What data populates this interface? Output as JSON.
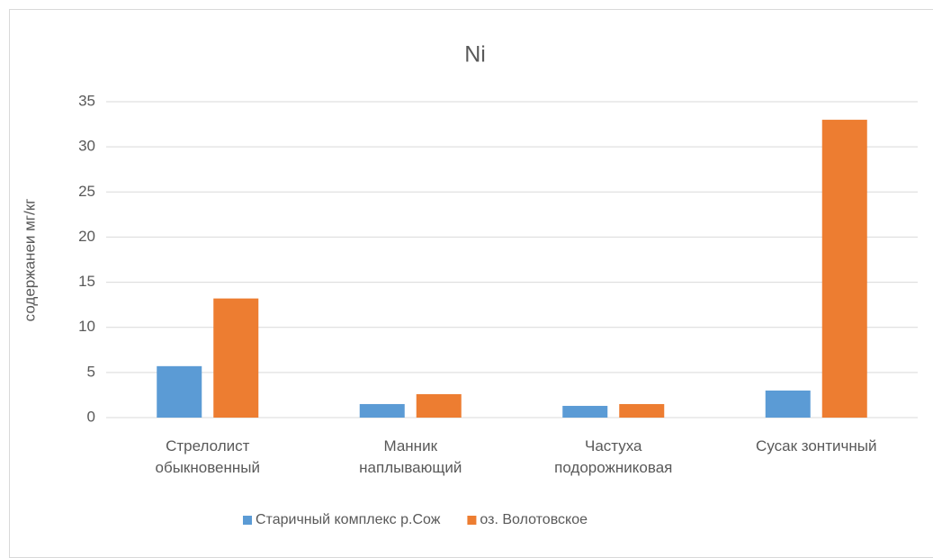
{
  "chart_data": {
    "type": "bar",
    "title": "Ni",
    "y_label": "содержанеи мг/кг",
    "categories": [
      "Стрелолист обыкновенный",
      "Манник наплывающий",
      "Частуха подорожниковая",
      "Сусак зонтичный"
    ],
    "series": [
      {
        "name": "Старичный комплекс р.Сож",
        "color": "#5b9bd5",
        "values": [
          5.7,
          1.5,
          1.3,
          3.0
        ]
      },
      {
        "name": "оз. Волотовское",
        "color": "#ed7d31",
        "values": [
          13.2,
          2.6,
          1.5,
          33.0
        ]
      }
    ],
    "ylim": [
      0,
      35
    ],
    "yticks": [
      0,
      5,
      10,
      15,
      20,
      25,
      30,
      35
    ],
    "grid": true,
    "legend": "bottom"
  }
}
